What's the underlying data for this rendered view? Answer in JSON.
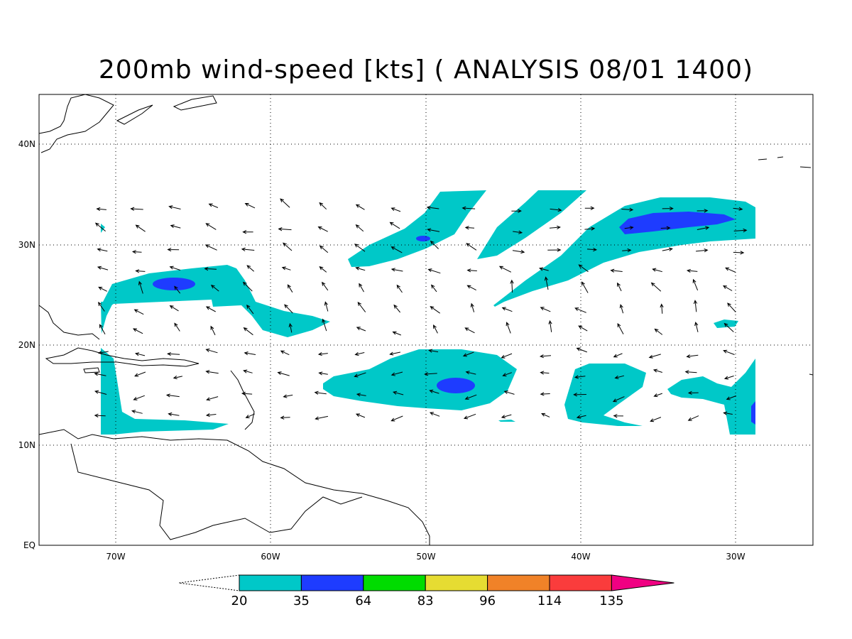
{
  "title": "200mb wind-speed [kts] ( ANALYSIS 08/01 1400)",
  "lat_labels": [
    "40N",
    "30N",
    "20N",
    "10N",
    "EQ"
  ],
  "lon_labels": [
    "70W",
    "60W",
    "50W",
    "40W",
    "30W"
  ],
  "colorbar": {
    "thresholds": [
      "20",
      "35",
      "64",
      "83",
      "96",
      "114",
      "135"
    ],
    "colors": [
      "#00c8c8",
      "#1e3cff",
      "#00dc00",
      "#e6dc32",
      "#f08228",
      "#fa3c3c",
      "#f00082"
    ]
  },
  "map_extent": {
    "lon_min": -75,
    "lon_max": -25,
    "lat_min": 0,
    "lat_max": 45
  }
}
